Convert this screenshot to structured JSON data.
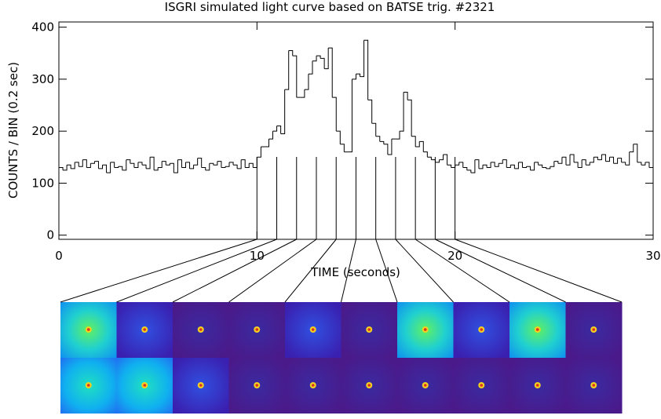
{
  "chart_data": {
    "type": "histogram",
    "title": "ISGRI simulated light curve based on BATSE trig. #2321",
    "x_label": "TIME (seconds)",
    "y_label": "COUNTS / BIN  (0.2 sec)",
    "bins": [
      0,
      0.2,
      0.4,
      0.6,
      0.8,
      1,
      1.2,
      1.4,
      1.6,
      1.8,
      2,
      2.2,
      2.4,
      2.6,
      2.8,
      3,
      3.2,
      3.4,
      3.6,
      3.8,
      4,
      4.2,
      4.4,
      4.6,
      4.8,
      5,
      5.2,
      5.4,
      5.6,
      5.8,
      6,
      6.2,
      6.4,
      6.6,
      6.8,
      7,
      7.2,
      7.4,
      7.6,
      7.8,
      8,
      8.2,
      8.4,
      8.6,
      8.8,
      9,
      9.2,
      9.4,
      9.6,
      9.8,
      10,
      10.2,
      10.4,
      10.6,
      10.8,
      11,
      11.2,
      11.4,
      11.6,
      11.8,
      12,
      12.2,
      12.4,
      12.6,
      12.8,
      13,
      13.2,
      13.4,
      13.6,
      13.8,
      14,
      14.2,
      14.4,
      14.6,
      14.8,
      15,
      15.2,
      15.4,
      15.6,
      15.8,
      16,
      16.2,
      16.4,
      16.6,
      16.8,
      17,
      17.2,
      17.4,
      17.6,
      17.8,
      18,
      18.2,
      18.4,
      18.6,
      18.8,
      19,
      19.2,
      19.4,
      19.6,
      19.8,
      20,
      20.2,
      20.4,
      20.6,
      20.8,
      21,
      21.2,
      21.4,
      21.6,
      21.8,
      22,
      22.2,
      22.4,
      22.6,
      22.8,
      23,
      23.2,
      23.4,
      23.6,
      23.8,
      24,
      24.2,
      24.4,
      24.6,
      24.8,
      25,
      25.2,
      25.4,
      25.6,
      25.8,
      26,
      26.2,
      26.4,
      26.6,
      26.8,
      27,
      27.2,
      27.4,
      27.6,
      27.8,
      28,
      28.2,
      28.4,
      28.6,
      28.8,
      29,
      29.2,
      29.4,
      29.6,
      29.8,
      30
    ],
    "values": [
      130,
      125,
      135,
      128,
      140,
      132,
      145,
      130,
      138,
      142,
      128,
      135,
      120,
      140,
      130,
      132,
      125,
      145,
      138,
      130,
      140,
      135,
      128,
      150,
      125,
      130,
      142,
      135,
      138,
      120,
      145,
      130,
      140,
      128,
      135,
      148,
      130,
      125,
      138,
      135,
      142,
      130,
      132,
      140,
      135,
      128,
      145,
      130,
      138,
      130,
      150,
      170,
      170,
      185,
      200,
      210,
      195,
      280,
      355,
      345,
      265,
      265,
      280,
      310,
      335,
      345,
      340,
      320,
      360,
      265,
      200,
      175,
      160,
      160,
      300,
      310,
      305,
      375,
      260,
      215,
      190,
      180,
      175,
      155,
      185,
      185,
      200,
      275,
      260,
      190,
      170,
      180,
      160,
      150,
      145,
      140,
      145,
      155,
      135,
      130,
      135,
      140,
      130,
      125,
      120,
      145,
      128,
      135,
      130,
      140,
      132,
      138,
      145,
      130,
      135,
      128,
      140,
      130,
      132,
      125,
      140,
      135,
      130,
      128,
      132,
      142,
      138,
      150,
      135,
      155,
      140,
      130,
      145,
      135,
      140,
      150,
      145,
      155,
      142,
      150,
      138,
      148,
      140,
      135,
      160,
      175,
      140,
      135,
      140,
      130
    ],
    "color": "#000000",
    "xlim": [
      0,
      30
    ],
    "xticks": [
      0,
      10,
      20,
      30
    ],
    "ylim": [
      -8,
      410
    ],
    "yticks": [
      0,
      100,
      200,
      300,
      400
    ]
  }
}
